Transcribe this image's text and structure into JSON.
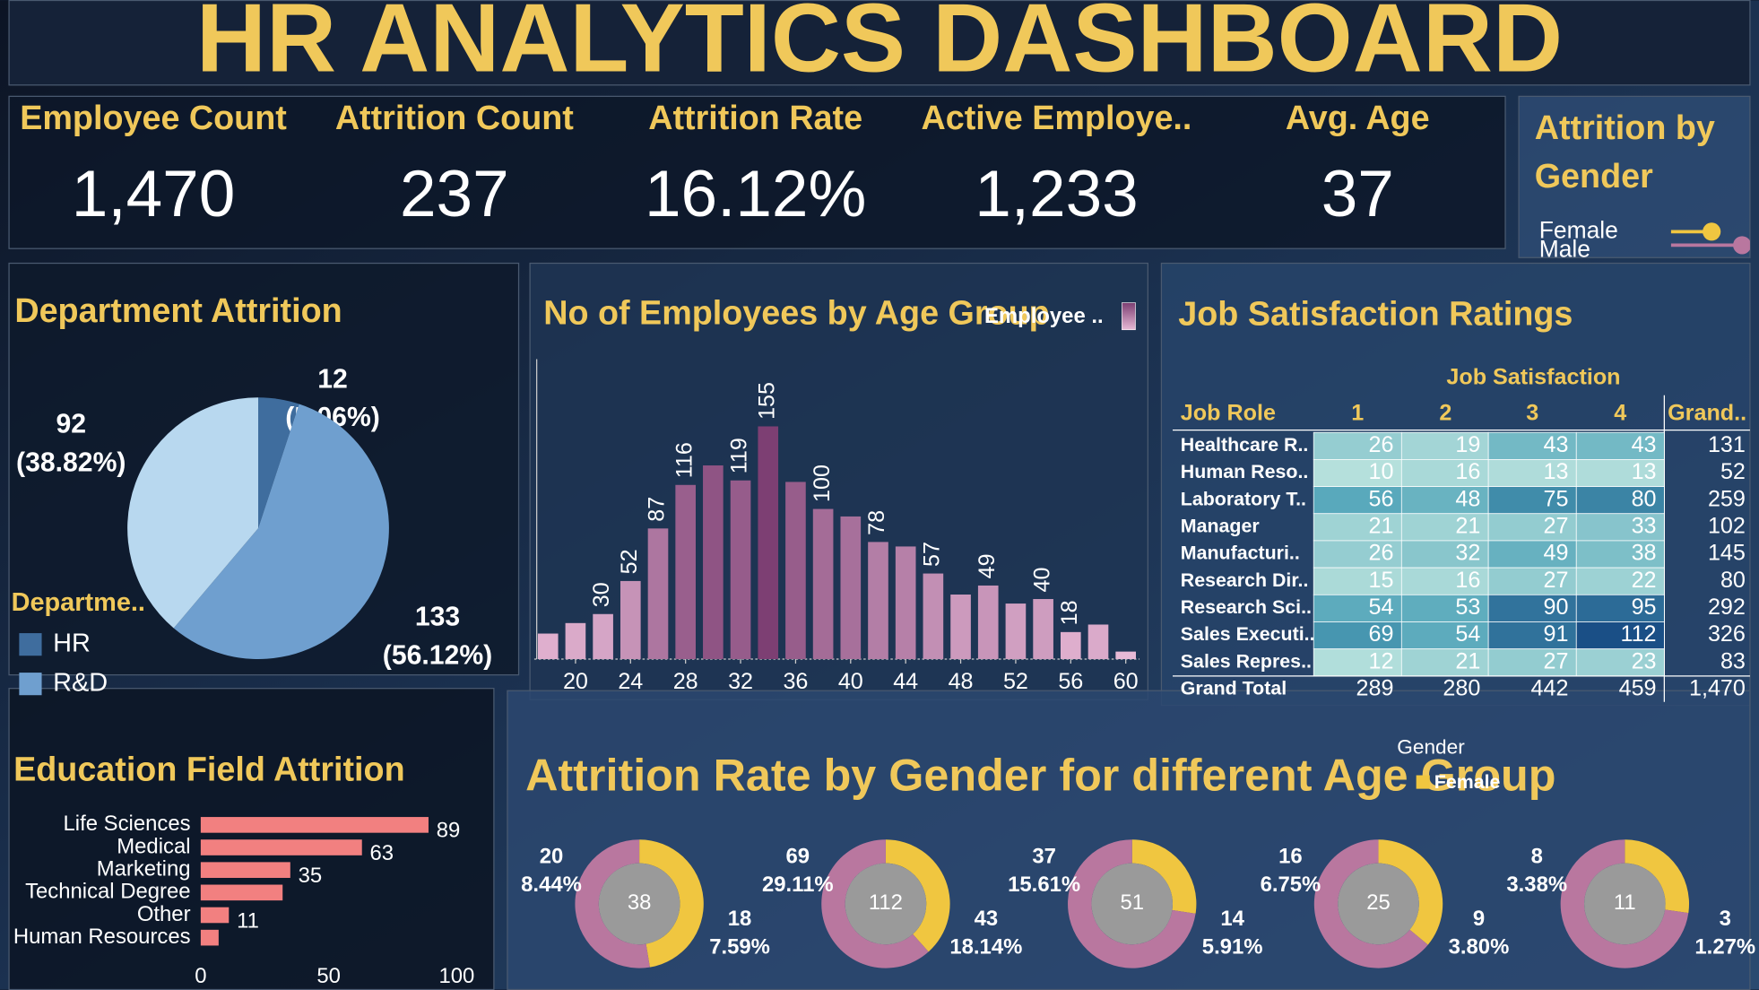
{
  "title": "HR ANALYTICS DASHBOARD",
  "kpis": [
    {
      "label": "Employee Count",
      "value": "1,470"
    },
    {
      "label": "Attrition Count",
      "value": "237"
    },
    {
      "label": "Attrition Rate",
      "value": "16.12%"
    },
    {
      "label": "Active Employe..",
      "value": "1,233"
    },
    {
      "label": "Avg. Age",
      "value": "37"
    }
  ],
  "gender_panel": {
    "title_lines": [
      "Attrition by",
      "Gender"
    ],
    "items": [
      "Female",
      "Male"
    ]
  },
  "job_satisfaction": {
    "title": "Job Satisfaction Ratings",
    "header": "Job Satisfaction",
    "columns": [
      "Job Role",
      "1",
      "2",
      "3",
      "4",
      "Grand.."
    ],
    "rows": [
      {
        "role": "Healthcare R..",
        "values": [
          26,
          19,
          43,
          43
        ],
        "total": 131
      },
      {
        "role": "Human Reso..",
        "values": [
          10,
          16,
          13,
          13
        ],
        "total": 52
      },
      {
        "role": "Laboratory T..",
        "values": [
          56,
          48,
          75,
          80
        ],
        "total": 259
      },
      {
        "role": "Manager",
        "values": [
          21,
          21,
          27,
          33
        ],
        "total": 102
      },
      {
        "role": "Manufacturi..",
        "values": [
          26,
          32,
          49,
          38
        ],
        "total": 145
      },
      {
        "role": "Research Dir..",
        "values": [
          15,
          16,
          27,
          22
        ],
        "total": 80
      },
      {
        "role": "Research Sci..",
        "values": [
          54,
          53,
          90,
          95
        ],
        "total": 292
      },
      {
        "role": "Sales Executi..",
        "values": [
          69,
          54,
          91,
          112
        ],
        "total": 326
      },
      {
        "role": "Sales Repres..",
        "values": [
          12,
          21,
          27,
          23
        ],
        "total": 83
      }
    ],
    "grand_total": {
      "label": "Grand Total",
      "values": [
        289,
        280,
        442,
        459
      ],
      "total": "1,470"
    },
    "color_range": [
      "#b5e0dc",
      "#4fa3b8",
      "#1a4f86"
    ]
  },
  "chart_data": [
    {
      "type": "pie",
      "title": "Department Attrition",
      "legend_title": "Departme..",
      "categories": [
        "HR",
        "R&D",
        null
      ],
      "values": [
        12,
        133,
        92
      ],
      "shares": [
        5.06,
        56.12,
        38.82
      ],
      "share_labels": [
        "(5.06%)",
        "(56.12%)",
        "(38.82%)"
      ],
      "colors": [
        "#3f6d9e",
        "#6f9fcf",
        "#b8d8ef"
      ]
    },
    {
      "type": "bar",
      "title": "No of Employees by Age Group",
      "legend_title": "Employee ..",
      "x": [
        18,
        20,
        22,
        24,
        26,
        28,
        30,
        32,
        34,
        36,
        38,
        40,
        42,
        44,
        46,
        48,
        50,
        52,
        54,
        56,
        58,
        60
      ],
      "values": [
        17,
        24,
        30,
        52,
        87,
        116,
        129,
        119,
        155,
        118,
        100,
        95,
        78,
        75,
        57,
        43,
        49,
        37,
        40,
        18,
        23,
        5
      ],
      "value_labels": [
        null,
        null,
        30,
        52,
        87,
        116,
        null,
        119,
        155,
        null,
        100,
        null,
        78,
        null,
        57,
        null,
        49,
        null,
        40,
        18,
        null,
        null
      ],
      "xlim": [
        17,
        61
      ],
      "xticks": [
        20,
        24,
        28,
        32,
        36,
        40,
        44,
        48,
        52,
        56,
        60
      ],
      "ylim": [
        0,
        160
      ],
      "color_range": [
        "#e7b9d6",
        "#7d3f73"
      ]
    },
    {
      "type": "hbar",
      "title": "Education Field Attrition",
      "categories": [
        "Life Sciences",
        "Medical",
        "Marketing",
        "Technical Degree",
        "Other",
        "Human Resources"
      ],
      "values": [
        89,
        63,
        35,
        32,
        11,
        7
      ],
      "value_labels": [
        89,
        63,
        35,
        null,
        11,
        null
      ],
      "xlim": [
        0,
        100
      ],
      "xticks": [
        0,
        50,
        100
      ],
      "color": "#f28080"
    },
    {
      "type": "donut",
      "title": "Attrition Rate by Gender for different Age Group",
      "legend_title": "Gender",
      "categories": [
        null,
        null,
        null,
        null,
        null
      ],
      "totals": [
        38,
        112,
        51,
        25,
        11
      ],
      "series": [
        {
          "name": "Female",
          "color": "#f0c640",
          "values": [
            18,
            43,
            14,
            9,
            3
          ],
          "percents": [
            7.59,
            18.14,
            5.91,
            3.8,
            1.27
          ],
          "percent_labels": [
            "7.59%",
            "18.14%",
            "5.91%",
            "3.80%",
            "1.27%"
          ]
        },
        {
          "name": "Male",
          "color": "#b9779f",
          "values": [
            20,
            69,
            37,
            16,
            8
          ],
          "percents": [
            8.44,
            29.11,
            15.61,
            6.75,
            3.38
          ],
          "percent_labels": [
            "8.44%",
            "29.11%",
            "15.61%",
            "6.75%",
            "3.38%"
          ]
        }
      ]
    }
  ]
}
